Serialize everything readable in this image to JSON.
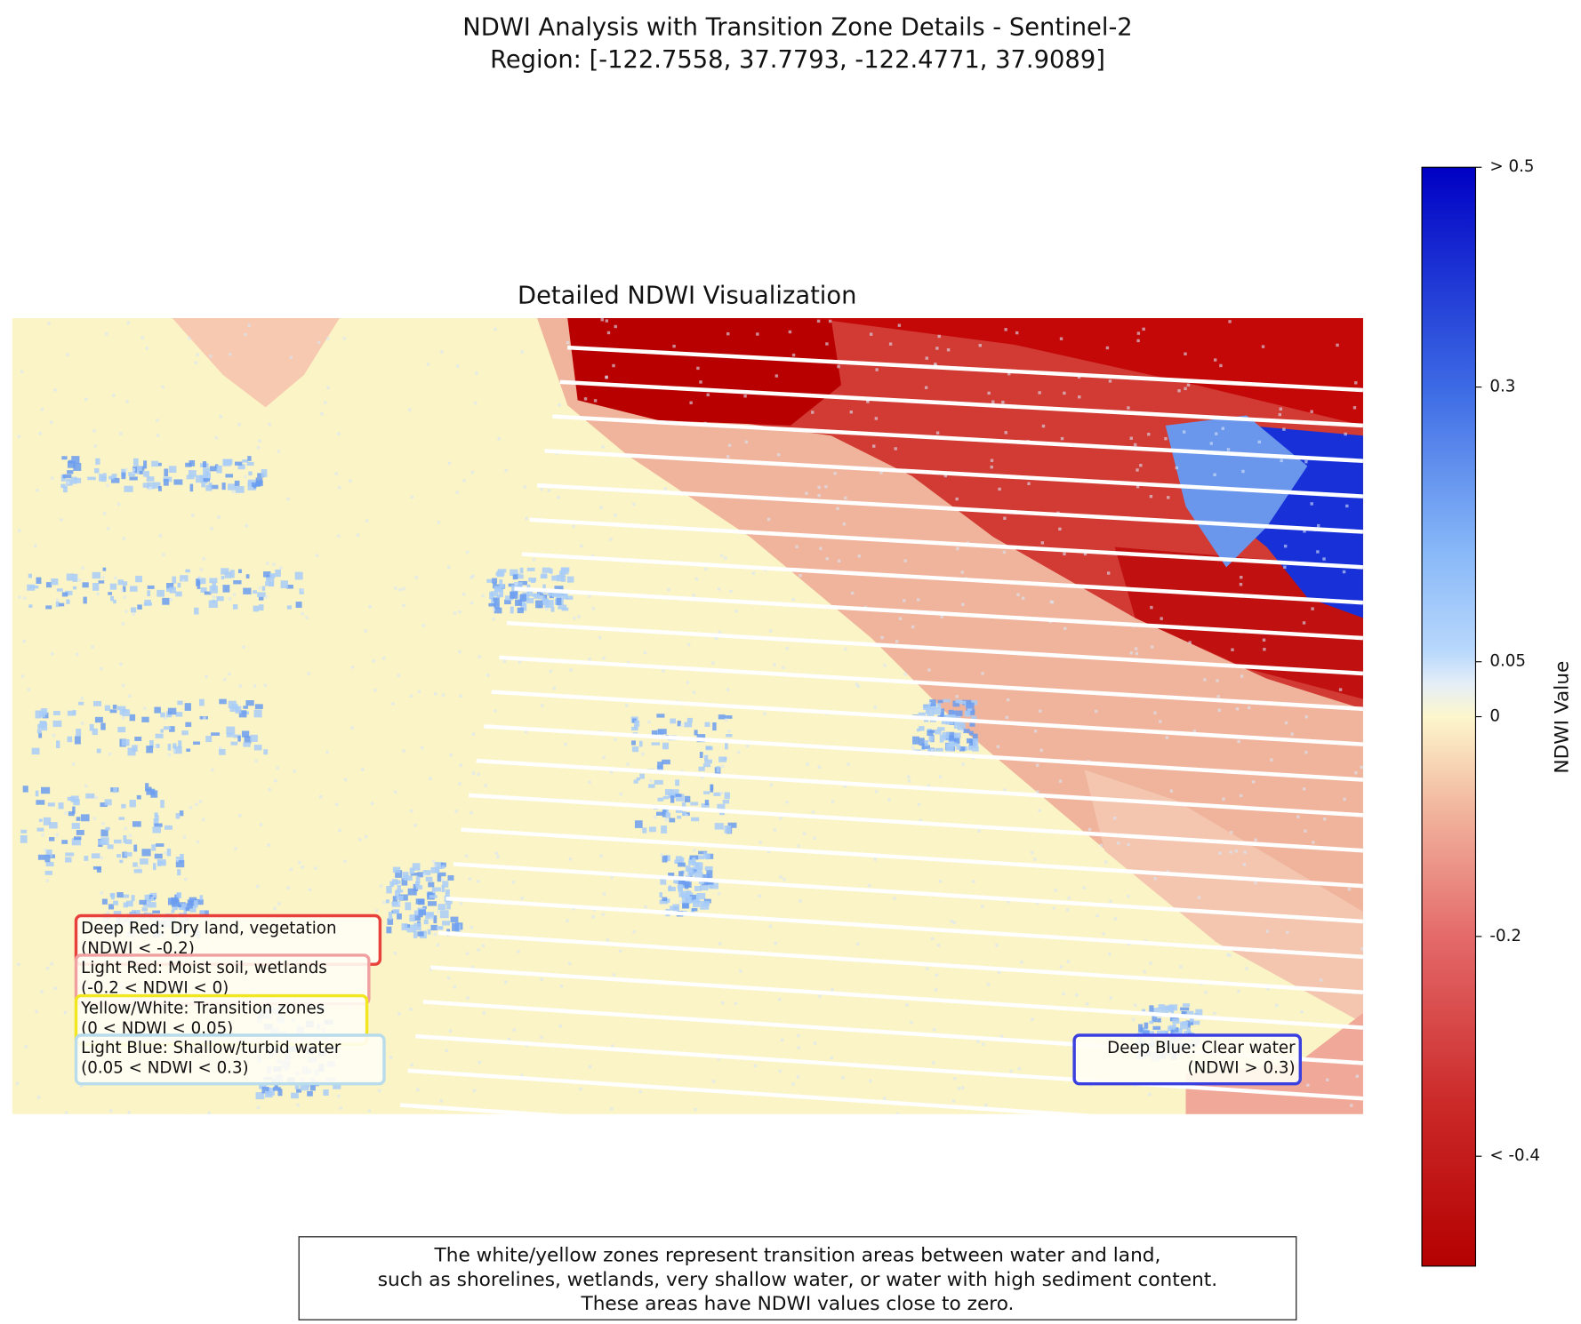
{
  "chart_data": {
    "type": "raster",
    "title": "NDWI Analysis with Transition Zone Details - Sentinel-2",
    "subtitle": "Region: [-122.7558, 37.7793, -122.4771, 37.9089]",
    "axes_title": "Detailed NDWI Visualization",
    "colorbar": {
      "label": "NDWI Value",
      "clim": [
        -0.5,
        0.5
      ],
      "ticks": [
        {
          "value": 0.5,
          "label": "> 0.5"
        },
        0.3,
        0.05,
        0,
        -0.2,
        {
          "value": -0.4,
          "label": "< -0.4"
        }
      ]
    },
    "annotations": [
      {
        "lines": [
          "Deep Red: Dry land, vegetation",
          "(NDWI < -0.2)"
        ],
        "color": "#e8403a"
      },
      {
        "lines": [
          "Light Red: Moist soil, wetlands",
          "(-0.2 < NDWI < 0)"
        ],
        "color": "#f0a0a0"
      },
      {
        "lines": [
          "Yellow/White: Transition zones",
          "(0 < NDWI < 0.05)"
        ],
        "color": "#f2e620"
      },
      {
        "lines": [
          "Light Blue: Shallow/turbid water",
          "(0.05 < NDWI < 0.3)"
        ],
        "color": "#b8dcec"
      },
      {
        "lines": [
          "Deep Blue: Clear water",
          "(NDWI > 0.3)"
        ],
        "color": "#3a40e0"
      }
    ],
    "footnote": [
      "The white/yellow zones represent transition areas between water and land,",
      "such as shorelines, wetlands, very shallow water, or water with high sediment content.",
      "These areas have NDWI values close to zero."
    ]
  }
}
